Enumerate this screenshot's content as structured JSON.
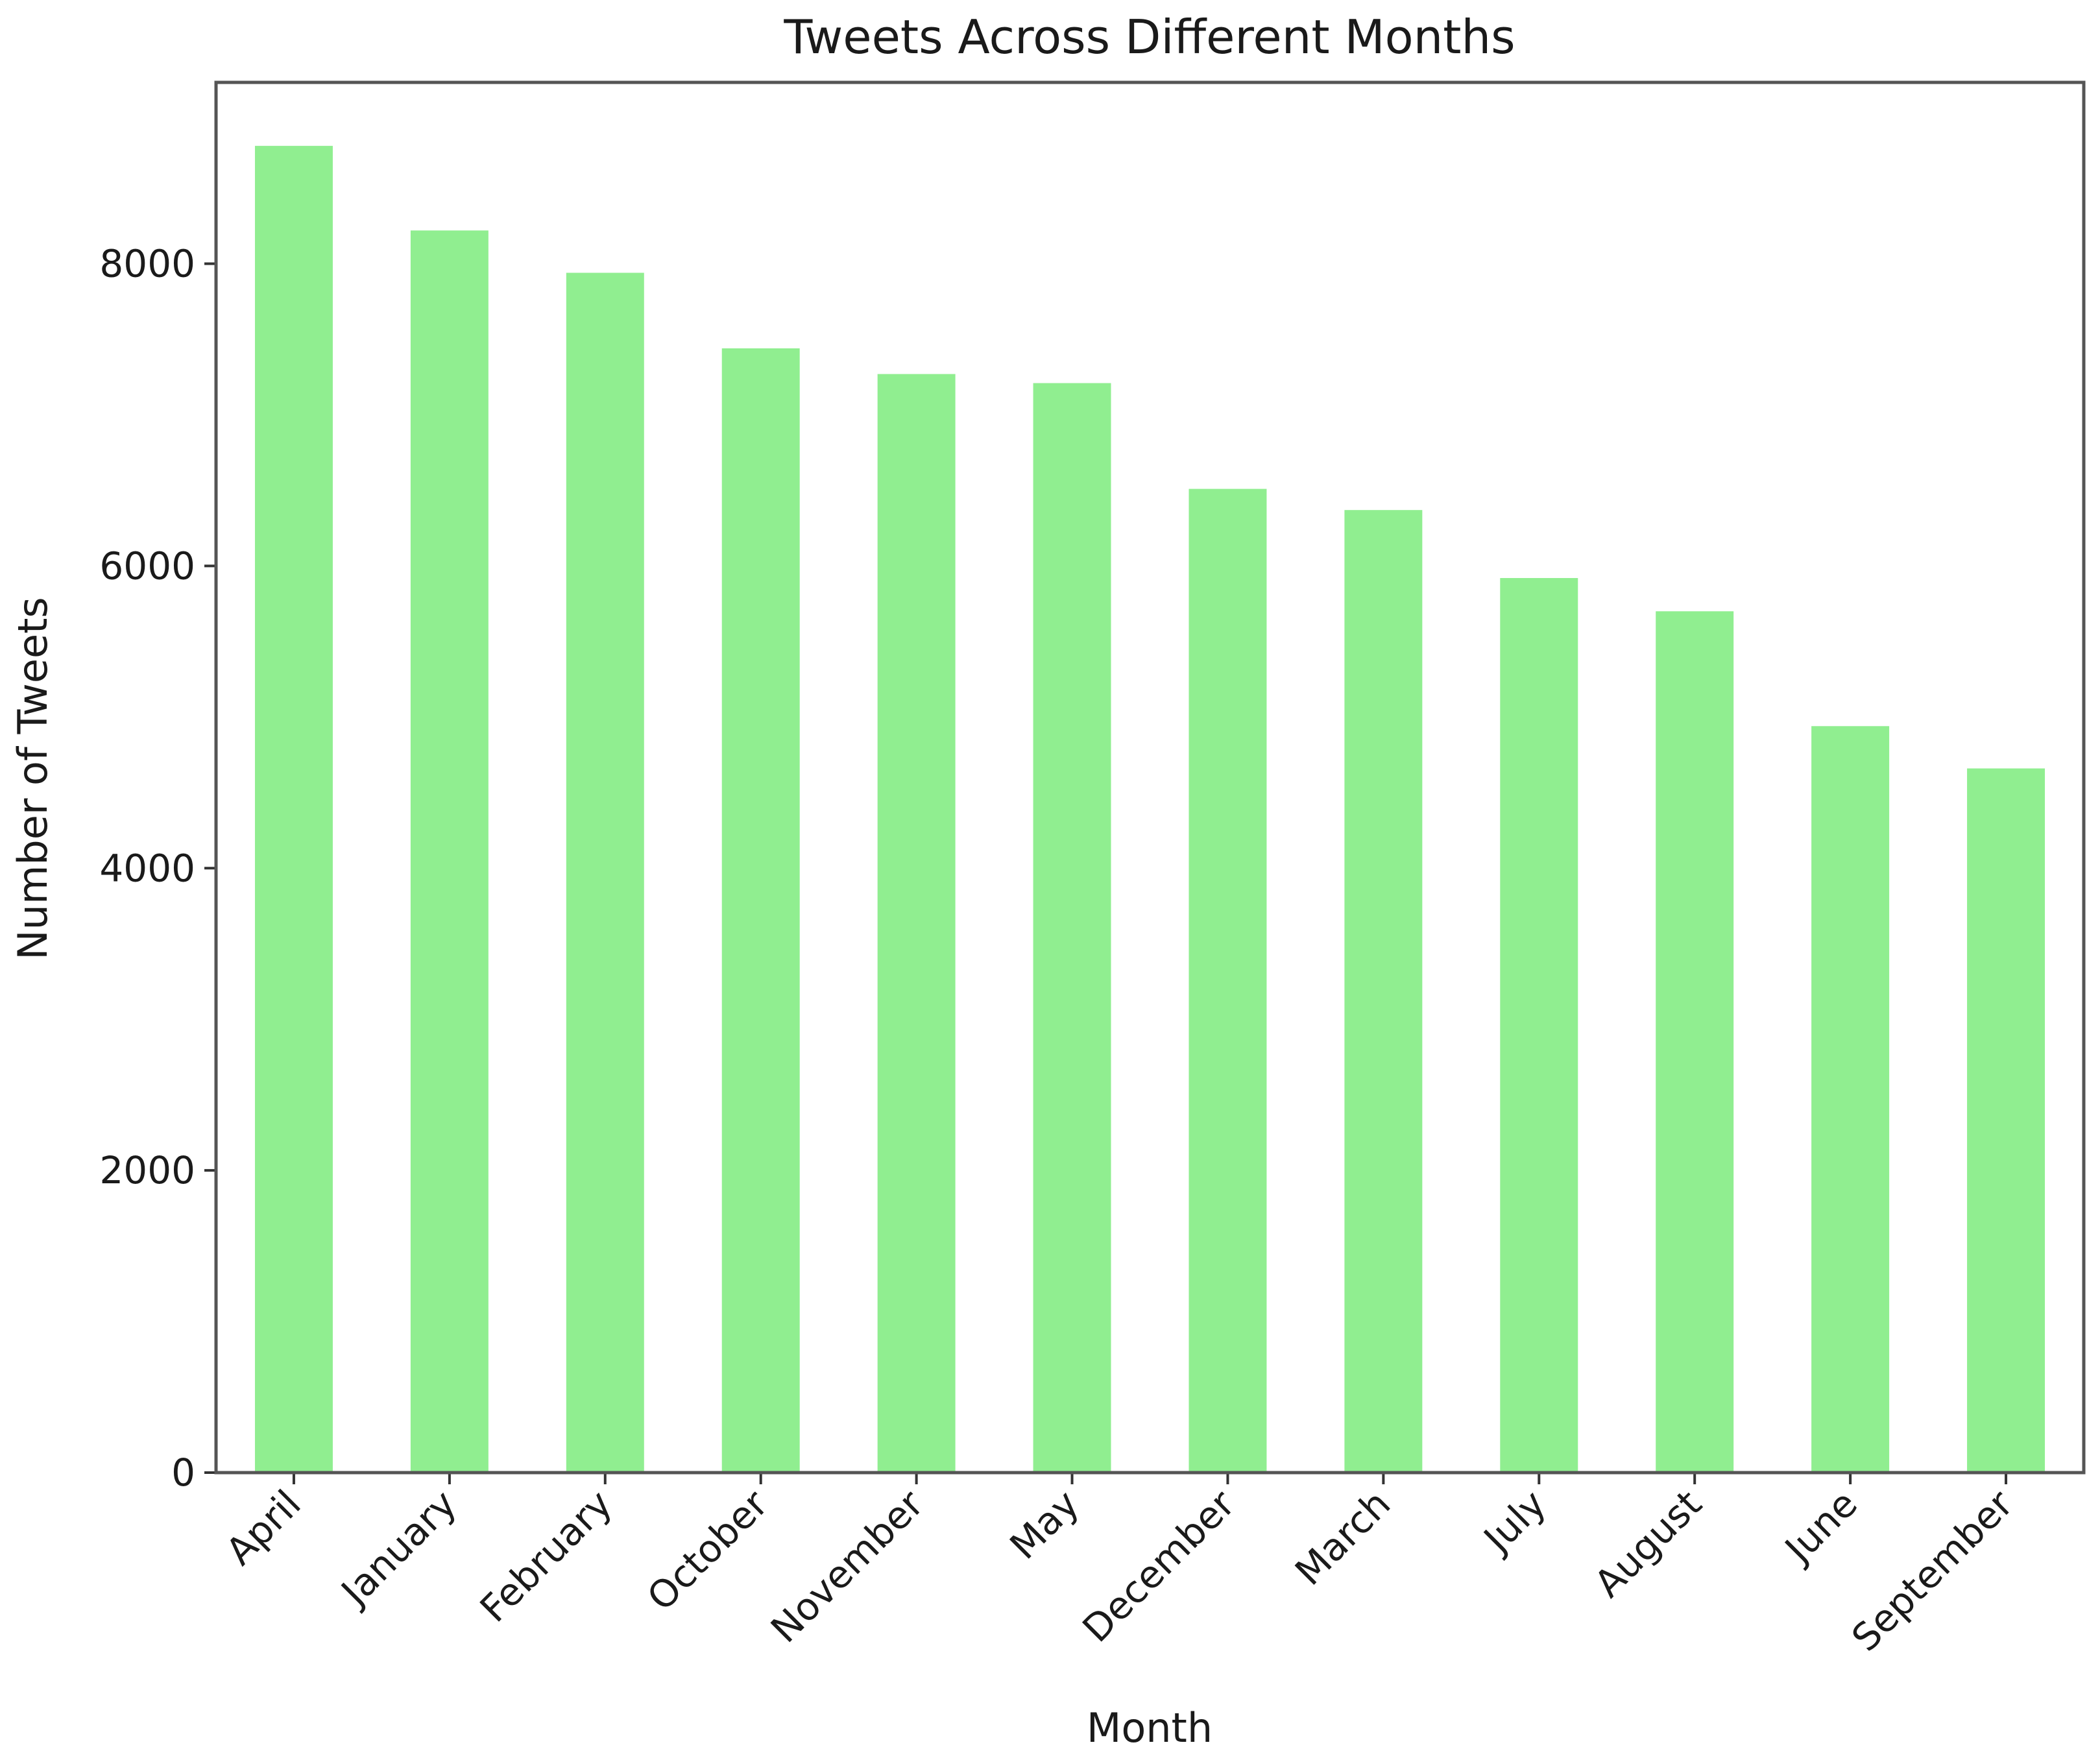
{
  "chart_data": {
    "type": "bar",
    "title": "Tweets Across Different Months",
    "xlabel": "Month",
    "ylabel": "Number of Tweets",
    "categories": [
      "April",
      "January",
      "February",
      "October",
      "November",
      "May",
      "December",
      "March",
      "July",
      "August",
      "June",
      "September"
    ],
    "values": [
      8780,
      8220,
      7940,
      7440,
      7270,
      7210,
      6510,
      6370,
      5920,
      5700,
      4940,
      4660
    ],
    "ylim": [
      0,
      9200
    ],
    "yticks": [
      0,
      2000,
      4000,
      6000,
      8000
    ],
    "bar_color": "#90ee90",
    "grid": false,
    "legend": "none"
  }
}
